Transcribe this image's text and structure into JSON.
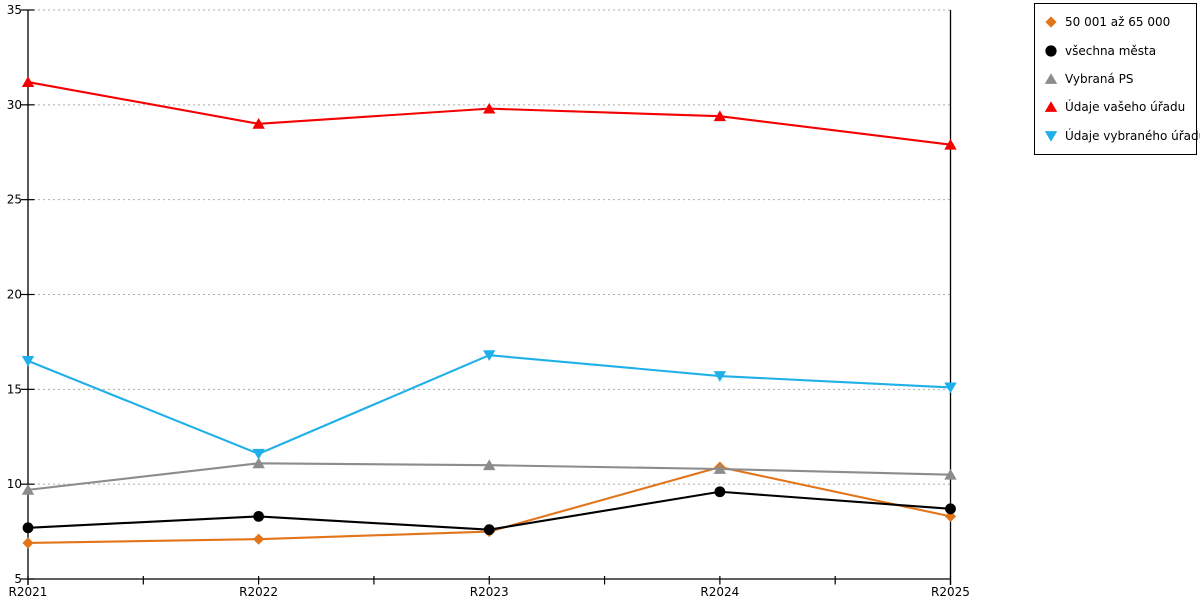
{
  "chart_data": {
    "type": "line",
    "title": "",
    "xlabel": "",
    "ylabel": "",
    "x": [
      "R2021",
      "R2022",
      "R2023",
      "R2024",
      "R2025"
    ],
    "ylim": [
      5,
      35
    ],
    "yticks": [
      5,
      10,
      15,
      20,
      25,
      30,
      35
    ],
    "grid": "horizontal-dotted",
    "gridline_color": "#ababab",
    "axis_color": "#000000",
    "legend_position": "outside-top-right",
    "series": [
      {
        "name": "50 001 až 65 000",
        "marker": "diamond",
        "color": "#E2751A",
        "values": [
          6.9,
          7.1,
          7.5,
          10.9,
          8.3
        ]
      },
      {
        "name": "všechna města",
        "marker": "circle",
        "color": "#000000",
        "values": [
          7.7,
          8.3,
          7.6,
          9.6,
          8.7
        ]
      },
      {
        "name": "Vybraná PS",
        "marker": "triangle-up",
        "color": "#8C8C8C",
        "values": [
          9.7,
          11.1,
          11.0,
          10.8,
          10.5
        ]
      },
      {
        "name": "Údaje vašeho úřadu",
        "marker": "triangle-up",
        "color": "#F40000",
        "values": [
          31.2,
          29.0,
          29.8,
          29.4,
          27.9
        ]
      },
      {
        "name": "Údaje vybraného úřadu",
        "marker": "triangle-down",
        "color": "#1FB0EA",
        "values": [
          16.5,
          11.6,
          16.8,
          15.7,
          15.1
        ]
      }
    ]
  }
}
